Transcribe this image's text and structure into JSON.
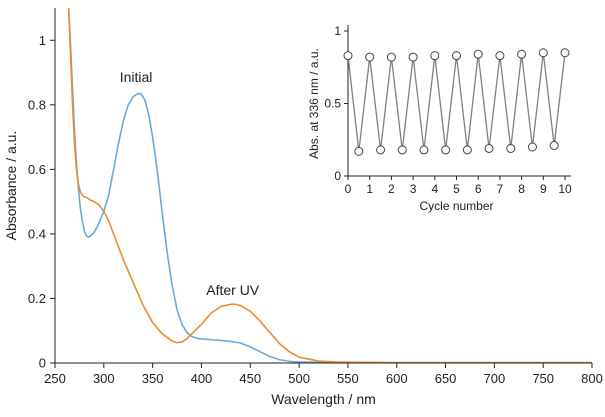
{
  "chart_data": [
    {
      "type": "line",
      "title": "",
      "xlabel": "Wavelength / nm",
      "ylabel": "Absorbance / a.u.",
      "xlim": [
        250,
        800
      ],
      "ylim": [
        0,
        1.1
      ],
      "xticks": [
        250,
        300,
        350,
        400,
        450,
        500,
        550,
        600,
        650,
        700,
        750,
        800
      ],
      "xtick_labels": [
        "250",
        "300",
        "350",
        "400",
        "450",
        "500",
        "550",
        "600",
        "650",
        "700",
        "750",
        "800"
      ],
      "yticks": [
        0,
        0.2,
        0.4,
        0.6,
        0.8,
        1
      ],
      "ytick_labels": [
        "0",
        "0.2",
        "0.4",
        "0.6",
        "0.8",
        "1"
      ],
      "series": [
        {
          "name": "Initial",
          "color": "#6aaad8",
          "x": [
            264,
            266,
            268,
            270,
            272,
            274,
            276,
            278,
            280,
            282,
            284,
            286,
            288,
            290,
            293,
            296,
            300,
            305,
            310,
            315,
            320,
            325,
            330,
            335,
            338,
            342,
            346,
            350,
            355,
            360,
            365,
            370,
            375,
            380,
            385,
            390,
            395,
            400,
            410,
            420,
            430,
            440,
            450,
            460,
            470,
            480,
            490,
            500,
            520,
            540,
            560,
            600,
            650,
            700,
            750,
            800
          ],
          "y": [
            1.1,
            0.98,
            0.85,
            0.72,
            0.62,
            0.54,
            0.48,
            0.44,
            0.41,
            0.395,
            0.39,
            0.393,
            0.398,
            0.405,
            0.42,
            0.44,
            0.47,
            0.52,
            0.6,
            0.68,
            0.75,
            0.8,
            0.825,
            0.835,
            0.835,
            0.815,
            0.77,
            0.7,
            0.59,
            0.46,
            0.34,
            0.24,
            0.165,
            0.12,
            0.095,
            0.082,
            0.077,
            0.075,
            0.072,
            0.07,
            0.067,
            0.062,
            0.05,
            0.035,
            0.02,
            0.01,
            0.005,
            0.003,
            0.002,
            0.001,
            0.001,
            0.001,
            0.001,
            0.001,
            0.001,
            0.001
          ]
        },
        {
          "name": "After UV",
          "color": "#ef8a2f",
          "x": [
            264,
            266,
            268,
            270,
            272,
            274,
            276,
            278,
            280,
            283,
            286,
            290,
            295,
            300,
            305,
            310,
            315,
            320,
            330,
            340,
            350,
            360,
            370,
            375,
            380,
            385,
            390,
            400,
            410,
            420,
            430,
            435,
            440,
            450,
            460,
            470,
            480,
            490,
            500,
            520,
            540,
            560,
            600,
            650,
            700,
            750,
            800
          ],
          "y": [
            1.1,
            0.95,
            0.8,
            0.68,
            0.6,
            0.555,
            0.53,
            0.52,
            0.515,
            0.512,
            0.505,
            0.5,
            0.49,
            0.47,
            0.44,
            0.4,
            0.36,
            0.32,
            0.25,
            0.18,
            0.125,
            0.09,
            0.068,
            0.063,
            0.065,
            0.075,
            0.09,
            0.12,
            0.155,
            0.175,
            0.182,
            0.182,
            0.178,
            0.16,
            0.13,
            0.095,
            0.06,
            0.035,
            0.018,
            0.006,
            0.003,
            0.002,
            0.001,
            0.001,
            0.001,
            0.001,
            0.001
          ]
        }
      ],
      "annotations": [
        {
          "text": "Initial",
          "x": 333,
          "y": 0.87
        },
        {
          "text": "After UV",
          "x": 432,
          "y": 0.21
        }
      ]
    },
    {
      "type": "line",
      "role": "inset",
      "title": "",
      "xlabel": "Cycle number",
      "ylabel": "Abs. at 336 nm / a.u.",
      "xlim": [
        0,
        10
      ],
      "ylim": [
        0,
        1
      ],
      "xticks": [
        0,
        1,
        2,
        3,
        4,
        5,
        6,
        7,
        8,
        9,
        10
      ],
      "xtick_labels": [
        "0",
        "1",
        "2",
        "3",
        "4",
        "5",
        "6",
        "7",
        "8",
        "9",
        "10"
      ],
      "yticks": [
        0,
        0.5,
        1
      ],
      "ytick_labels": [
        "0",
        "0.5",
        "1"
      ],
      "series": [
        {
          "name": "Abs. at 336 nm",
          "color": "#808080",
          "marker": "open-circle",
          "x": [
            0,
            0.5,
            1,
            1.5,
            2,
            2.5,
            3,
            3.5,
            4,
            4.5,
            5,
            5.5,
            6,
            6.5,
            7,
            7.5,
            8,
            8.5,
            9,
            9.5,
            10
          ],
          "y": [
            0.83,
            0.17,
            0.82,
            0.18,
            0.82,
            0.18,
            0.82,
            0.18,
            0.83,
            0.18,
            0.83,
            0.18,
            0.84,
            0.19,
            0.83,
            0.19,
            0.84,
            0.2,
            0.85,
            0.21,
            0.85
          ]
        }
      ]
    }
  ]
}
